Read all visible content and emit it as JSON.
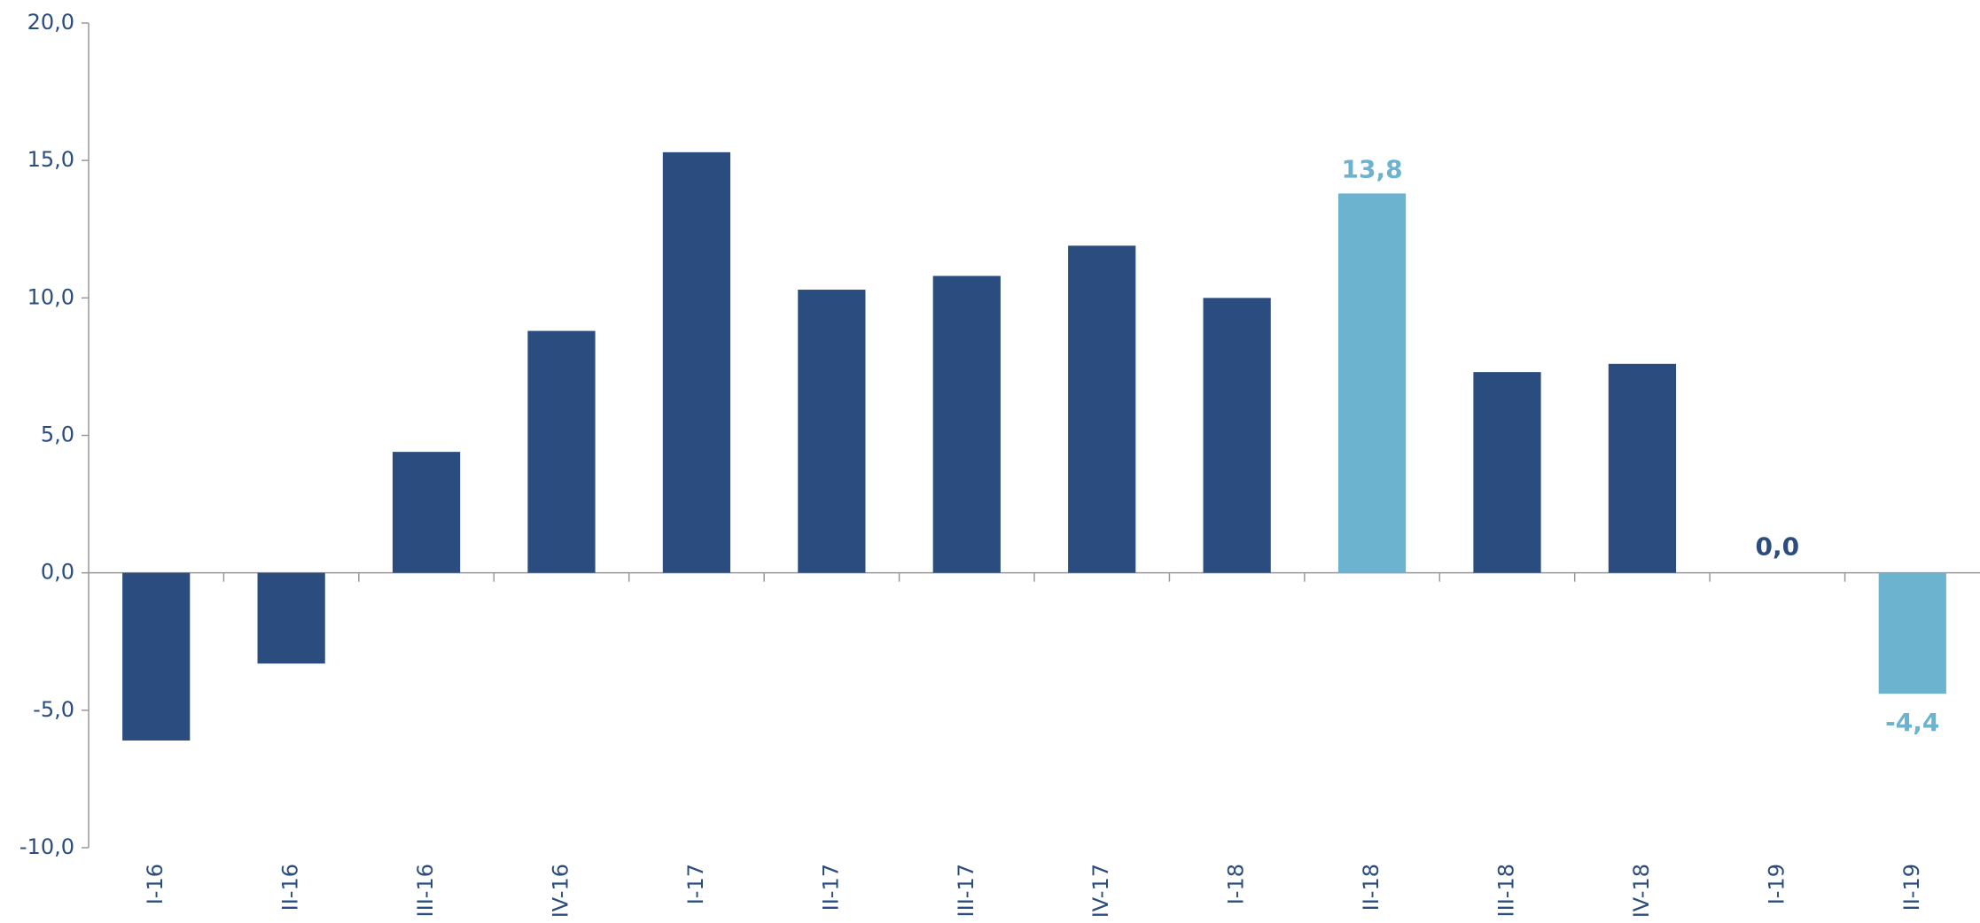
{
  "chart_data": {
    "type": "bar",
    "categories": [
      "I-16",
      "II-16",
      "III-16",
      "IV-16",
      "I-17",
      "II-17",
      "III-17",
      "IV-17",
      "I-18",
      "II-18",
      "III-18",
      "IV-18",
      "I-19",
      "II-19"
    ],
    "values": [
      -6.1,
      -3.3,
      4.4,
      8.8,
      15.3,
      10.3,
      10.8,
      11.9,
      10.0,
      13.8,
      7.3,
      7.6,
      0.0,
      -4.4
    ],
    "value_labels": [
      null,
      null,
      null,
      null,
      null,
      null,
      null,
      null,
      null,
      "13,8",
      null,
      null,
      "0,0",
      "-4,4"
    ],
    "colors": [
      "#2b4c7e",
      "#2b4c7e",
      "#2b4c7e",
      "#2b4c7e",
      "#2b4c7e",
      "#2b4c7e",
      "#2b4c7e",
      "#2b4c7e",
      "#2b4c7e",
      "#6cb3d0",
      "#2b4c7e",
      "#2b4c7e",
      "#2b4c7e",
      "#6cb3d0"
    ],
    "ylim": [
      -10,
      20
    ],
    "yticks": [
      {
        "value": -10,
        "label": "-10,0"
      },
      {
        "value": -5,
        "label": "-5,0"
      },
      {
        "value": 0,
        "label": "0,0"
      },
      {
        "value": 5,
        "label": "5,0"
      },
      {
        "value": 10,
        "label": "10,0"
      },
      {
        "value": 15,
        "label": "15,0"
      },
      {
        "value": 20,
        "label": "20,0"
      }
    ],
    "grid": false
  }
}
